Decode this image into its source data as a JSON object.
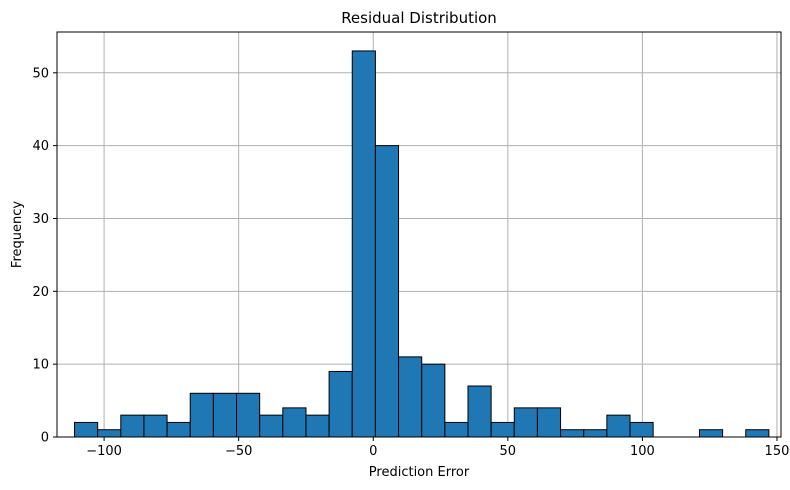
{
  "chart_data": {
    "type": "bar",
    "title": "Residual Distribution",
    "xlabel": "Prediction Error",
    "ylabel": "Frequency",
    "xlim": [
      -117.5,
      151.5
    ],
    "ylim": [
      0,
      55.6
    ],
    "bin_edges": [
      -111,
      -102.4,
      -93.8,
      -85.2,
      -76.6,
      -68.0,
      -59.4,
      -50.8,
      -42.2,
      -33.6,
      -25.0,
      -16.4,
      -7.8,
      0.8,
      9.4,
      18.0,
      26.6,
      35.2,
      43.8,
      52.4,
      61.0,
      69.6,
      78.2,
      86.8,
      95.4,
      104.0,
      112.6,
      121.2,
      129.8,
      138.4,
      147.0
    ],
    "counts": [
      2,
      1,
      3,
      3,
      2,
      6,
      6,
      6,
      3,
      4,
      3,
      9,
      53,
      40,
      11,
      10,
      2,
      7,
      2,
      4,
      4,
      1,
      1,
      3,
      2,
      0,
      0,
      1,
      0,
      1
    ],
    "xticks": [
      -100,
      -50,
      0,
      50,
      100,
      150
    ],
    "xtick_labels": [
      "−100",
      "−50",
      "0",
      "50",
      "100",
      "150"
    ],
    "yticks": [
      0,
      10,
      20,
      30,
      40,
      50
    ],
    "ytick_labels": [
      "0",
      "10",
      "20",
      "30",
      "40",
      "50"
    ],
    "grid": true,
    "bar_color": "#1f77b4",
    "edge_color": "#000000",
    "grid_color": "#b0b0b0"
  }
}
